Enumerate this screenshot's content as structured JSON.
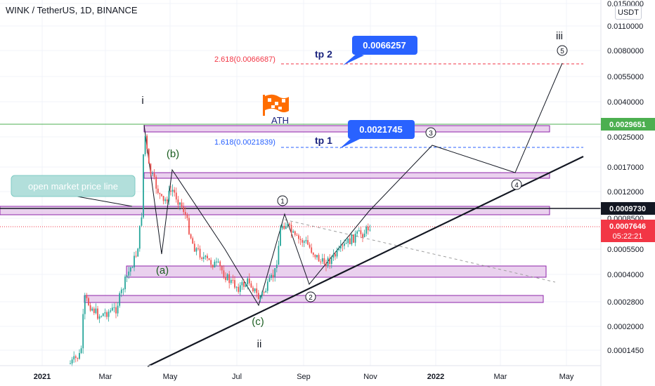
{
  "header": {
    "title": "WINK / TetherUS, 1D, BINANCE",
    "currency": "USDT"
  },
  "colors": {
    "candle_up": "#26a69a",
    "candle_down": "#ef5350",
    "zone_fill": "#e1bee7",
    "zone_border": "#8e24aa",
    "green_line": "#4caf50",
    "red_dash": "#f23645",
    "blue_dash": "#2962ff",
    "callout_blue": "#2962ff",
    "teal_callout": "#b2dfdb"
  },
  "chart_data": {
    "type": "candlestick",
    "x_ticks": [
      "2021",
      "Mar",
      "May",
      "Jul",
      "Sep",
      "Nov",
      "2022",
      "Mar",
      "May"
    ],
    "y_ticks": [
      "0.0150000",
      "0.0110000",
      "0.0080000",
      "0.0055000",
      "0.0040000",
      "0.0025000",
      "0.0017000",
      "0.0012000",
      "0.0008500",
      "0.0005500",
      "0.0004000",
      "0.0002800",
      "0.0002000",
      "0.0001450"
    ],
    "price_labels": [
      {
        "text": "0.0029651",
        "color": "#4caf50"
      },
      {
        "text": "0.0009730",
        "color": "#131722"
      },
      {
        "text": "0.0007646",
        "color": "#f23645"
      },
      {
        "text": "05:22:21",
        "color": "#f23645"
      }
    ],
    "levels": [
      {
        "text": "2.618(0.0066687)",
        "color": "#f23645"
      },
      {
        "text": "1.618(0.0021839)",
        "color": "#2962ff"
      }
    ],
    "callouts": [
      {
        "text": "0.0066257"
      },
      {
        "text": "0.0021745"
      }
    ],
    "tp_labels": [
      "tp 2",
      "tp 1"
    ],
    "ath_label": "ATH",
    "market_note": "open market price line",
    "wave_labels": [
      {
        "text": "i"
      },
      {
        "text": "(b)"
      },
      {
        "text": "(a)"
      },
      {
        "text": "(c)"
      },
      {
        "text": "ii"
      },
      {
        "text": "iii"
      },
      {
        "text": "1"
      },
      {
        "text": "2"
      },
      {
        "text": "3"
      },
      {
        "text": "4"
      },
      {
        "text": "5"
      }
    ]
  }
}
